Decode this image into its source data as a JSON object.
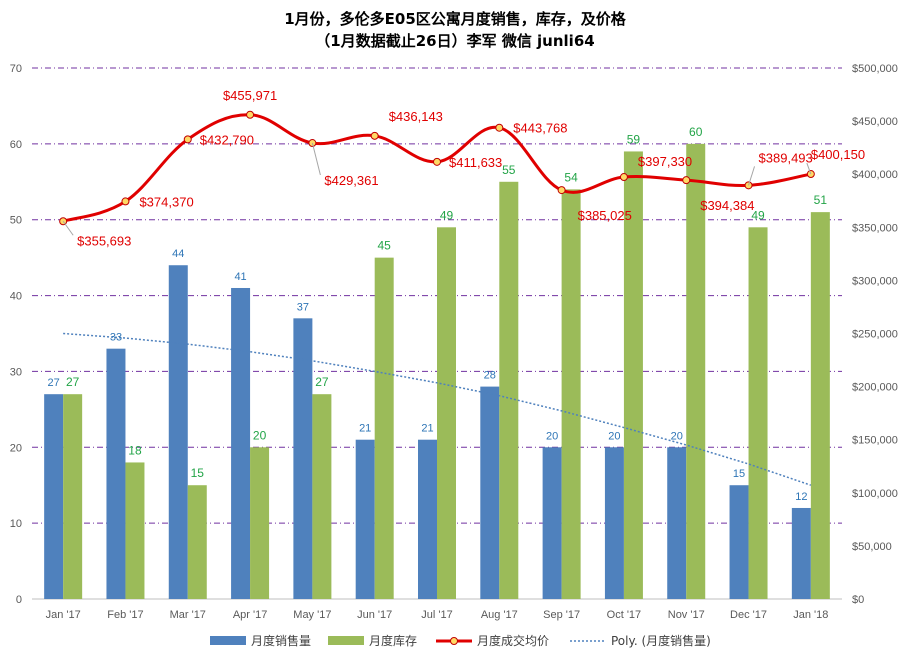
{
  "title_line1": "1月份，多伦多E05区公寓月度销售，库存，及价格",
  "title_line2": "（1月数据截止26日）李军 微信 junli64",
  "chart_data": {
    "type": "bar",
    "categories": [
      "Jan '17",
      "Feb '17",
      "Mar '17",
      "Apr '17",
      "May '17",
      "Jun '17",
      "Jul '17",
      "Aug '17",
      "Sep '17",
      "Oct '17",
      "Nov '17",
      "Dec '17",
      "Jan '18"
    ],
    "series": [
      {
        "name": "月度销售量",
        "type": "bar",
        "axis": "left",
        "color": "#4f81bd",
        "values": [
          27,
          33,
          44,
          41,
          37,
          21,
          21,
          28,
          20,
          20,
          20,
          15,
          12
        ]
      },
      {
        "name": "月度库存",
        "type": "bar",
        "axis": "left",
        "color": "#9bbb59",
        "values": [
          27,
          18,
          15,
          20,
          27,
          45,
          49,
          55,
          54,
          59,
          60,
          49,
          51
        ]
      },
      {
        "name": "月度成交均价",
        "type": "line",
        "axis": "right",
        "color": "#e00000",
        "marker_color": "#ffd966",
        "values": [
          355693,
          374370,
          432790,
          455971,
          429361,
          436143,
          411633,
          443768,
          385025,
          397330,
          394384,
          389493,
          400150
        ],
        "labels": [
          "$355,693",
          "$374,370",
          "$432,790",
          "$455,971",
          "$429,361",
          "$436,143",
          "$411,633",
          "$443,768",
          "$385,025",
          "$397,330",
          "$394,384",
          "$389,493",
          "$400,150"
        ]
      },
      {
        "name": "Poly. (月度销售量)",
        "type": "trendline",
        "axis": "left",
        "color": "#4f81bd",
        "values": [
          35,
          34.4,
          33.6,
          32.6,
          31.4,
          30.0,
          28.5,
          26.8,
          24.8,
          22.6,
          20.3,
          17.8,
          15.0
        ]
      }
    ],
    "y_left": {
      "min": 0,
      "max": 70,
      "ticks": [
        "0",
        "10",
        "20",
        "30",
        "40",
        "50",
        "60",
        "70"
      ]
    },
    "y_right": {
      "min": 0,
      "max": 500000,
      "ticks": [
        "$0",
        "$50,000",
        "$100,000",
        "$150,000",
        "$200,000",
        "$250,000",
        "$300,000",
        "$350,000",
        "$400,000",
        "$450,000",
        "$500,000"
      ]
    },
    "grid": true,
    "legend": "bottom"
  }
}
